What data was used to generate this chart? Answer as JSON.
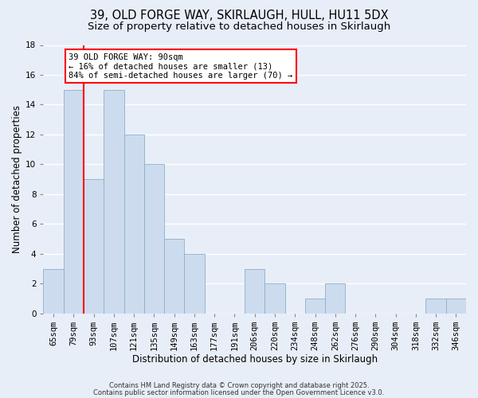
{
  "title_line1": "39, OLD FORGE WAY, SKIRLAUGH, HULL, HU11 5DX",
  "title_line2": "Size of property relative to detached houses in Skirlaugh",
  "xlabel": "Distribution of detached houses by size in Skirlaugh",
  "ylabel": "Number of detached properties",
  "bins": [
    "65sqm",
    "79sqm",
    "93sqm",
    "107sqm",
    "121sqm",
    "135sqm",
    "149sqm",
    "163sqm",
    "177sqm",
    "191sqm",
    "206sqm",
    "220sqm",
    "234sqm",
    "248sqm",
    "262sqm",
    "276sqm",
    "290sqm",
    "304sqm",
    "318sqm",
    "332sqm",
    "346sqm"
  ],
  "values": [
    3,
    15,
    9,
    15,
    12,
    10,
    5,
    4,
    0,
    0,
    3,
    2,
    0,
    1,
    2,
    0,
    0,
    0,
    0,
    1,
    1
  ],
  "bar_color": "#ccdcee",
  "bar_edge_color": "#90aec8",
  "ylim": [
    0,
    18
  ],
  "yticks": [
    0,
    2,
    4,
    6,
    8,
    10,
    12,
    14,
    16,
    18
  ],
  "annotation_text": "39 OLD FORGE WAY: 90sqm\n← 16% of detached houses are smaller (13)\n84% of semi-detached houses are larger (70) →",
  "footer_line1": "Contains HM Land Registry data © Crown copyright and database right 2025.",
  "footer_line2": "Contains public sector information licensed under the Open Government Licence v3.0.",
  "background_color": "#e8eef8",
  "grid_color": "#ffffff",
  "title_fontsize": 10.5,
  "subtitle_fontsize": 9.5,
  "label_fontsize": 8.5,
  "tick_fontsize": 7.5,
  "annotation_fontsize": 7.5,
  "footer_fontsize": 6.0
}
